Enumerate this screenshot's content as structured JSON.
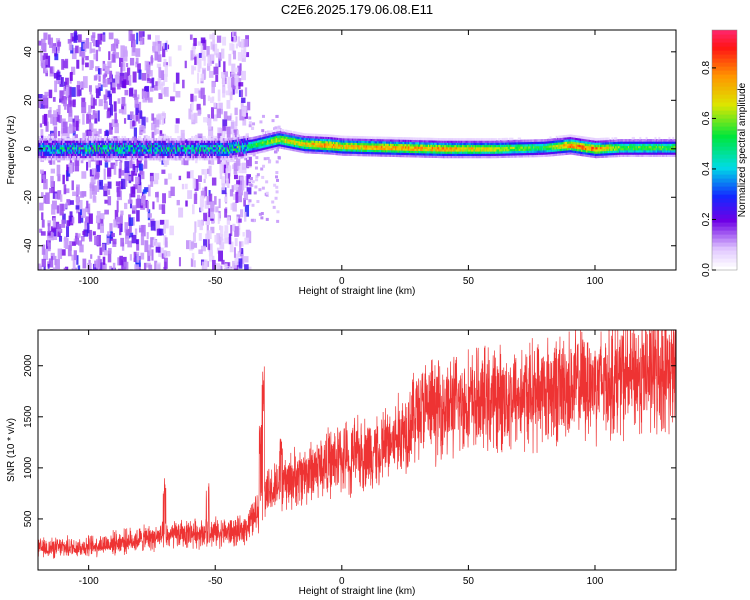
{
  "title": "C2E6.2025.179.06.08.E11",
  "chart_data": [
    {
      "type": "heatmap",
      "xlabel": "Height of straight line (km)",
      "ylabel": "Frequency (Hz)",
      "xlim": [
        -120,
        132
      ],
      "ylim": [
        -50,
        49
      ],
      "x_ticks": [
        -100,
        -50,
        0,
        50,
        100
      ],
      "x_tick_labels": [
        "-100",
        "-50",
        "0",
        "50",
        "100"
      ],
      "y_ticks": [
        -40,
        -20,
        0,
        20,
        40
      ],
      "y_tick_labels": [
        "-40",
        "-20",
        "0",
        "20",
        "40"
      ],
      "colorbar": {
        "label": "Normalized spectral amplitude",
        "range": [
          0,
          0.95
        ],
        "ticks": [
          0,
          0.2,
          0.4,
          0.6,
          0.8
        ],
        "tick_labels": [
          "0.0",
          "0.2",
          "0.4",
          "0.6",
          "0.8"
        ]
      },
      "ridge": {
        "x": [
          -120,
          -100,
          -80,
          -60,
          -45,
          -35,
          -25,
          -15,
          -5,
          0,
          20,
          40,
          60,
          80,
          90,
          100,
          110,
          132
        ],
        "freq": [
          0,
          0,
          0,
          0,
          0,
          1.5,
          4,
          2,
          1.5,
          1,
          0.5,
          0,
          0,
          0.5,
          1.5,
          0,
          0.5,
          0.5
        ],
        "amplitude": [
          0.45,
          0.5,
          0.5,
          0.45,
          0.5,
          0.55,
          0.7,
          0.75,
          0.85,
          0.75,
          0.8,
          0.8,
          0.7,
          0.55,
          0.85,
          0.85,
          0.6,
          0.6
        ]
      },
      "noise_region_x": [
        -120,
        -37
      ]
    },
    {
      "type": "line",
      "xlabel": "Height of straight line (km)",
      "ylabel": "SNR (10 * v/v)",
      "xlim": [
        -120,
        132
      ],
      "ylim": [
        0,
        2350
      ],
      "x_ticks": [
        -100,
        -50,
        0,
        50,
        100
      ],
      "x_tick_labels": [
        "-100",
        "-50",
        "0",
        "50",
        "100"
      ],
      "y_ticks": [
        500,
        1000,
        1500,
        2000
      ],
      "y_tick_labels": [
        "500",
        "1000",
        "1500",
        "2000"
      ],
      "series": [
        {
          "color": "#ee3333",
          "trend_x": [
            -120,
            -100,
            -80,
            -70,
            -60,
            -50,
            -40,
            -35,
            -31,
            -25,
            -10,
            0,
            10,
            20,
            25,
            30,
            50,
            70,
            90,
            110,
            132
          ],
          "trend_y": [
            210,
            230,
            300,
            330,
            360,
            370,
            370,
            500,
            700,
            820,
            1000,
            1100,
            1150,
            1250,
            1380,
            1560,
            1640,
            1700,
            1800,
            1880,
            1960
          ],
          "spikes_x": [
            -70,
            -53,
            -32,
            -31,
            -24,
            3,
            15
          ],
          "spikes_y": [
            900,
            850,
            1450,
            2000,
            1300,
            950,
            1000
          ]
        }
      ]
    }
  ]
}
